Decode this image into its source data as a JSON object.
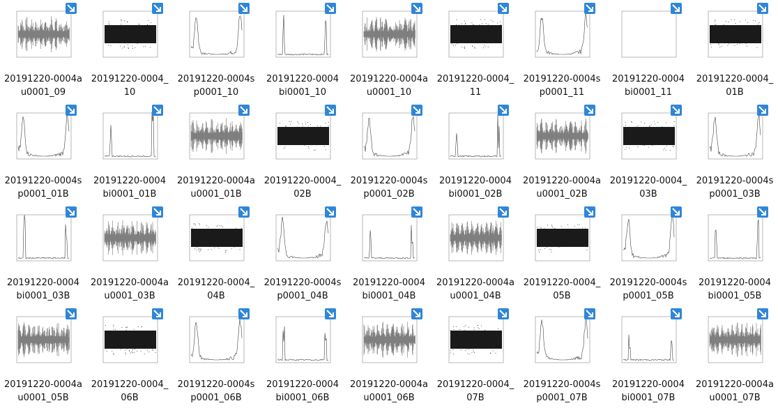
{
  "files": [
    {
      "name": "20191220-0004au0001_09"
    },
    {
      "name": "20191220-0004_10"
    },
    {
      "name": "20191220-0004sp0001_10"
    },
    {
      "name": "20191220-0004bi0001_10"
    },
    {
      "name": "20191220-0004au0001_10"
    },
    {
      "name": "20191220-0004_11"
    },
    {
      "name": "20191220-0004sp0001_11"
    },
    {
      "name": "20191220-0004bi0001_11"
    },
    {
      "name": "20191220-0004_01B"
    },
    {
      "name": "20191220-0004sp0001_01B"
    },
    {
      "name": "20191220-0004bi0001_01B"
    },
    {
      "name": "20191220-0004au0001_01B"
    },
    {
      "name": "20191220-0004_02B"
    },
    {
      "name": "20191220-0004sp0001_02B"
    },
    {
      "name": "20191220-0004bi0001_02B"
    },
    {
      "name": "20191220-0004au0001_02B"
    },
    {
      "name": "20191220-0004_03B"
    },
    {
      "name": "20191220-0004sp0001_03B"
    },
    {
      "name": "20191220-0004bi0001_03B"
    },
    {
      "name": "20191220-0004au0001_03B"
    },
    {
      "name": "20191220-0004_04B"
    },
    {
      "name": "20191220-0004sp0001_04B"
    },
    {
      "name": "20191220-0004bi0001_04B"
    },
    {
      "name": "20191220-0004au0001_04B"
    },
    {
      "name": "20191220-0004_05B"
    },
    {
      "name": "20191220-0004sp0001_05B"
    },
    {
      "name": "20191220-0004bi0001_05B"
    },
    {
      "name": "20191220-0004au0001_05B"
    },
    {
      "name": "20191220-0004_06B"
    },
    {
      "name": "20191220-0004sp0001_06B"
    },
    {
      "name": "20191220-0004bi0001_06B"
    },
    {
      "name": "20191220-0004au0001_06B"
    },
    {
      "name": "20191220-0004_07B"
    },
    {
      "name": "20191220-0004sp0001_07B"
    },
    {
      "name": "20191220-0004bi0001_07B"
    },
    {
      "name": "20191220-0004au0001_07B"
    }
  ]
}
